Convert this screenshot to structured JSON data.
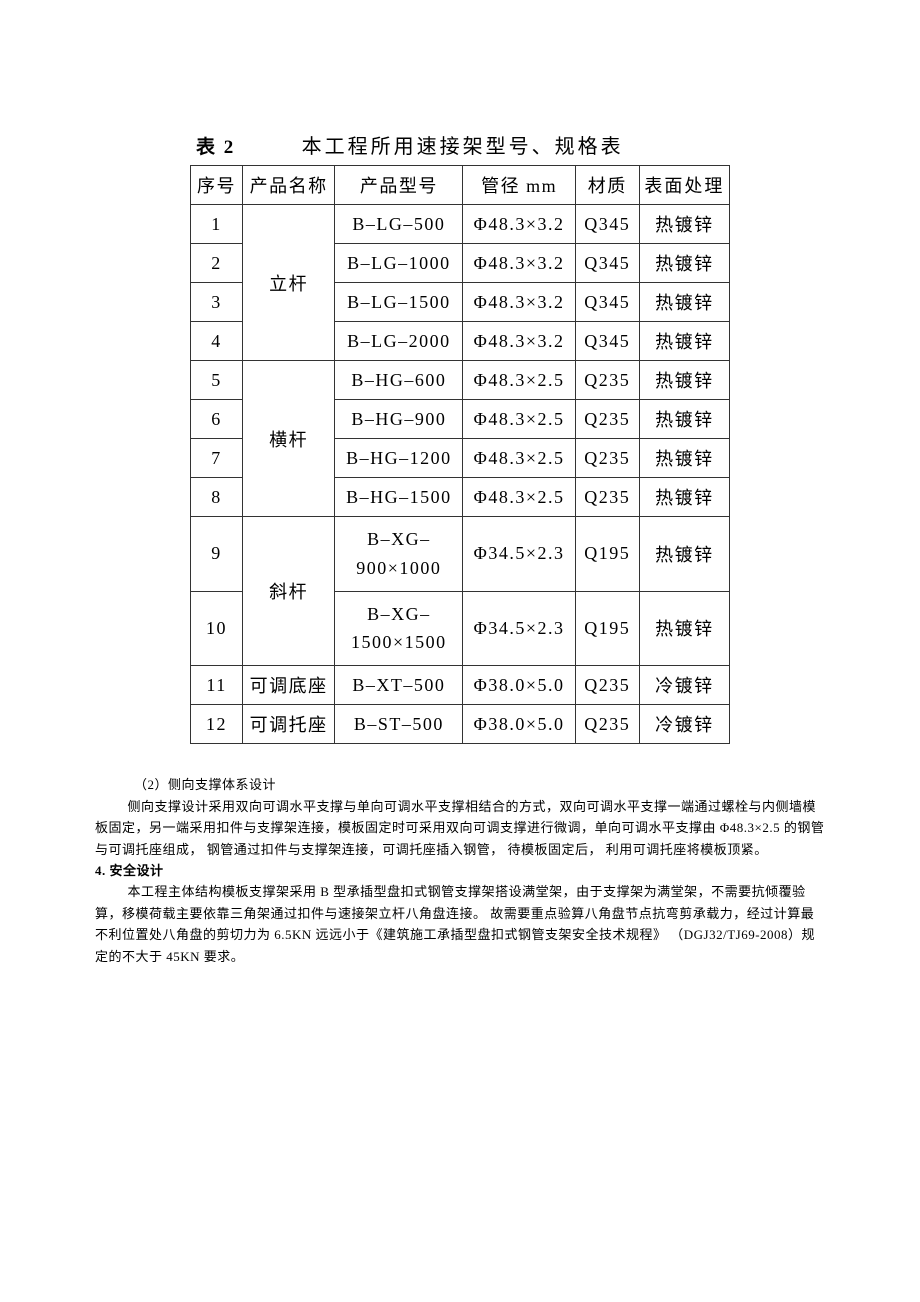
{
  "table": {
    "caption_num": "表 2",
    "caption_title": "本工程所用速接架型号、规格表",
    "headers": {
      "seq": "序号",
      "name": "产品名称",
      "model": "产品型号",
      "diam": "管径 mm",
      "mat": "材质",
      "treat": "表面处理"
    },
    "groups": [
      {
        "name": "立杆",
        "rows": [
          {
            "seq": "1",
            "model": "B–LG–500",
            "diam": "Φ48.3×3.2",
            "mat": "Q345",
            "treat": "热镀锌"
          },
          {
            "seq": "2",
            "model": "B–LG–1000",
            "diam": "Φ48.3×3.2",
            "mat": "Q345",
            "treat": "热镀锌"
          },
          {
            "seq": "3",
            "model": "B–LG–1500",
            "diam": "Φ48.3×3.2",
            "mat": "Q345",
            "treat": "热镀锌"
          },
          {
            "seq": "4",
            "model": "B–LG–2000",
            "diam": "Φ48.3×3.2",
            "mat": "Q345",
            "treat": "热镀锌"
          }
        ]
      },
      {
        "name": "横杆",
        "rows": [
          {
            "seq": "5",
            "model": "B–HG–600",
            "diam": "Φ48.3×2.5",
            "mat": "Q235",
            "treat": "热镀锌"
          },
          {
            "seq": "6",
            "model": "B–HG–900",
            "diam": "Φ48.3×2.5",
            "mat": "Q235",
            "treat": "热镀锌"
          },
          {
            "seq": "7",
            "model": "B–HG–1200",
            "diam": "Φ48.3×2.5",
            "mat": "Q235",
            "treat": "热镀锌"
          },
          {
            "seq": "8",
            "model": "B–HG–1500",
            "diam": "Φ48.3×2.5",
            "mat": "Q235",
            "treat": "热镀锌"
          }
        ]
      },
      {
        "name": "斜杆",
        "rows": [
          {
            "seq": "9",
            "model_l1": "B–XG–",
            "model_l2": "900×1000",
            "diam": "Φ34.5×2.3",
            "mat": "Q195",
            "treat": "热镀锌"
          },
          {
            "seq": "10",
            "model_l1": "B–XG–",
            "model_l2": "1500×1500",
            "diam": "Φ34.5×2.3",
            "mat": "Q195",
            "treat": "热镀锌"
          }
        ]
      },
      {
        "name": "可调底座",
        "rows": [
          {
            "seq": "11",
            "model": "B–XT–500",
            "diam": "Φ38.0×5.0",
            "mat": "Q235",
            "treat": "冷镀锌"
          }
        ]
      },
      {
        "name": "可调托座",
        "rows": [
          {
            "seq": "12",
            "model": "B–ST–500",
            "diam": "Φ38.0×5.0",
            "mat": "Q235",
            "treat": "冷镀锌"
          }
        ]
      }
    ]
  },
  "paras": {
    "p2_title": "（2）侧向支撑体系设计",
    "p2_body": "侧向支撑设计采用双向可调水平支撑与单向可调水平支撑相结合的方式，双向可调水平支撑一端通过螺栓与内侧墙模板固定，另一端采用扣件与支撑架连接，模板固定时可采用双向可调支撑进行微调，单向可调水平支撑由 Φ48.3×2.5 的钢管与可调托座组成， 钢管通过扣件与支撑架连接，可调托座插入钢管，  待模板固定后，  利用可调托座将模板顶紧。",
    "sec4_hdr": "4.   安全设计",
    "sec4_body": "本工程主体结构模板支撑架采用 B 型承插型盘扣式钢管支撑架搭设满堂架，由于支撑架为满堂架，不需要抗倾覆验算，移模荷载主要依靠三角架通过扣件与速接架立杆八角盘连接。  故需要重点验算八角盘节点抗弯剪承载力，经过计算最不利位置处八角盘的剪切力为 6.5KN 远远小于《建筑施工承插型盘扣式钢管支架安全技术规程》 （DGJ32/TJ69-2008）规定的不大于 45KN  要求。"
  }
}
